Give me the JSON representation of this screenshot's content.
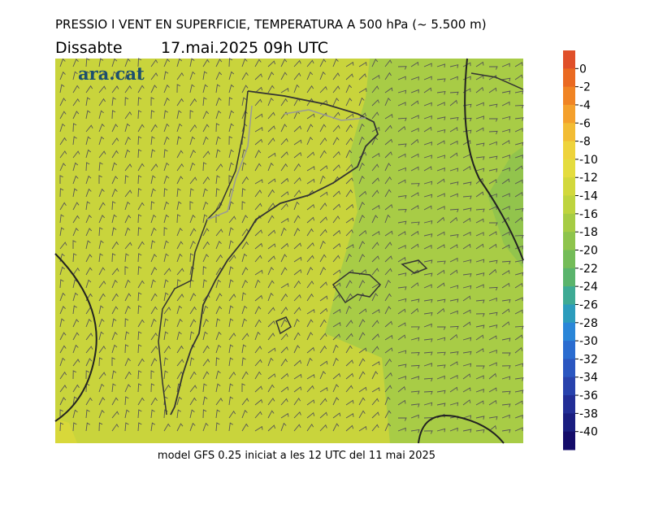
{
  "header": {
    "title": "PRESSIO I VENT EN SUPERFICIE, TEMPERATURA A 500 hPa (~ 5.500 m)",
    "day": "Dissabte",
    "datetime": "17.mai.2025 09h UTC"
  },
  "logo": "ara.cat",
  "footer": "model GFS 0.25 iniciat a les 12 UTC del 11 mai 2025",
  "colorbar": {
    "lim": [
      2,
      -42
    ],
    "ticks": [
      0,
      -2,
      -4,
      -6,
      -8,
      -10,
      -12,
      -14,
      -16,
      -18,
      -20,
      -22,
      -24,
      -26,
      -28,
      -30,
      -32,
      -34,
      -36,
      -38,
      -40
    ],
    "colors": [
      "#e0502a",
      "#ea6a22",
      "#f08424",
      "#f4a02c",
      "#f2bc34",
      "#eed33c",
      "#e4dc3e",
      "#d2d83c",
      "#bed43e",
      "#a6cc44",
      "#8ec44c",
      "#74bc58",
      "#5ab46c",
      "#3eaa94",
      "#2c9cbc",
      "#2a86d8",
      "#2a6cd0",
      "#2a56c0",
      "#2842ac",
      "#222e96",
      "#1a1e80",
      "#140c6a"
    ]
  }
}
